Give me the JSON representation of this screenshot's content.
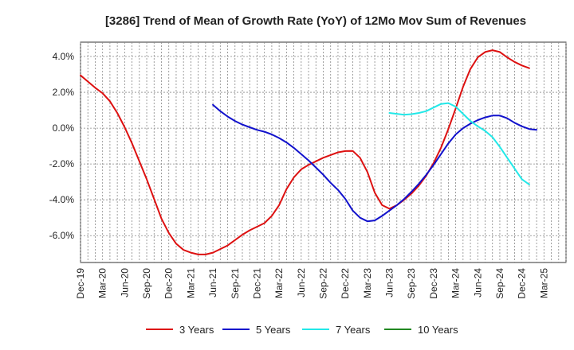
{
  "chart_data": {
    "type": "line",
    "title": "[3286]  Trend of Mean of Growth Rate (YoY) of 12Mo Mov Sum of Revenues",
    "xlabel": "",
    "ylabel": "",
    "ylim": [
      -7.5,
      4.8
    ],
    "xlim": [
      0,
      66
    ],
    "y_ticks": [
      {
        "value": 4,
        "label": "4.0%"
      },
      {
        "value": 2,
        "label": "2.0%"
      },
      {
        "value": 0,
        "label": "0.0%"
      },
      {
        "value": -2,
        "label": "-2.0%"
      },
      {
        "value": -4,
        "label": "-4.0%"
      },
      {
        "value": -6,
        "label": "-6.0%"
      }
    ],
    "x_ticks": [
      {
        "index": 0,
        "label": "Dec-19"
      },
      {
        "index": 3,
        "label": "Mar-20"
      },
      {
        "index": 6,
        "label": "Jun-20"
      },
      {
        "index": 9,
        "label": "Sep-20"
      },
      {
        "index": 12,
        "label": "Dec-20"
      },
      {
        "index": 15,
        "label": "Mar-21"
      },
      {
        "index": 18,
        "label": "Jun-21"
      },
      {
        "index": 21,
        "label": "Sep-21"
      },
      {
        "index": 24,
        "label": "Dec-21"
      },
      {
        "index": 27,
        "label": "Mar-22"
      },
      {
        "index": 30,
        "label": "Jun-22"
      },
      {
        "index": 33,
        "label": "Sep-22"
      },
      {
        "index": 36,
        "label": "Dec-22"
      },
      {
        "index": 39,
        "label": "Mar-23"
      },
      {
        "index": 42,
        "label": "Jun-23"
      },
      {
        "index": 45,
        "label": "Sep-23"
      },
      {
        "index": 48,
        "label": "Dec-23"
      },
      {
        "index": 51,
        "label": "Mar-24"
      },
      {
        "index": 54,
        "label": "Jun-24"
      },
      {
        "index": 57,
        "label": "Sep-24"
      },
      {
        "index": 60,
        "label": "Dec-24"
      },
      {
        "index": 63,
        "label": "Mar-25"
      }
    ],
    "series": [
      {
        "name": "3 Years",
        "color": "#dd1111",
        "start_index": 0,
        "values": [
          2.95,
          2.6,
          2.25,
          1.95,
          1.5,
          0.85,
          0.05,
          -0.85,
          -1.85,
          -2.85,
          -3.95,
          -5.05,
          -5.85,
          -6.45,
          -6.8,
          -6.95,
          -7.05,
          -7.05,
          -6.95,
          -6.75,
          -6.55,
          -6.25,
          -5.95,
          -5.7,
          -5.5,
          -5.3,
          -4.9,
          -4.3,
          -3.4,
          -2.75,
          -2.3,
          -2.05,
          -1.85,
          -1.65,
          -1.5,
          -1.35,
          -1.28,
          -1.27,
          -1.65,
          -2.45,
          -3.6,
          -4.3,
          -4.5,
          -4.3,
          -4.0,
          -3.65,
          -3.2,
          -2.65,
          -1.95,
          -1.1,
          -0.05,
          1.1,
          2.3,
          3.3,
          3.95,
          4.25,
          4.35,
          4.25,
          3.95,
          3.7,
          3.5,
          3.35
        ]
      },
      {
        "name": "5 Years",
        "color": "#1111cc",
        "start_index": 18,
        "values": [
          1.3,
          0.95,
          0.65,
          0.4,
          0.2,
          0.05,
          -0.1,
          -0.2,
          -0.35,
          -0.55,
          -0.8,
          -1.1,
          -1.45,
          -1.8,
          -2.2,
          -2.6,
          -3.05,
          -3.45,
          -3.95,
          -4.6,
          -5.0,
          -5.2,
          -5.15,
          -4.9,
          -4.6,
          -4.3,
          -3.95,
          -3.55,
          -3.1,
          -2.6,
          -2.05,
          -1.45,
          -0.85,
          -0.35,
          0.0,
          0.25,
          0.45,
          0.6,
          0.7,
          0.7,
          0.55,
          0.3,
          0.1,
          -0.05,
          -0.1
        ]
      },
      {
        "name": "7 Years",
        "color": "#22e8e8",
        "start_index": 42,
        "values": [
          0.85,
          0.8,
          0.75,
          0.78,
          0.85,
          0.95,
          1.15,
          1.35,
          1.4,
          1.2,
          0.8,
          0.4,
          0.1,
          -0.15,
          -0.5,
          -1.05,
          -1.65,
          -2.25,
          -2.85,
          -3.15
        ]
      },
      {
        "name": "10 Years",
        "color": "#228822",
        "start_index": 0,
        "values": []
      }
    ]
  }
}
